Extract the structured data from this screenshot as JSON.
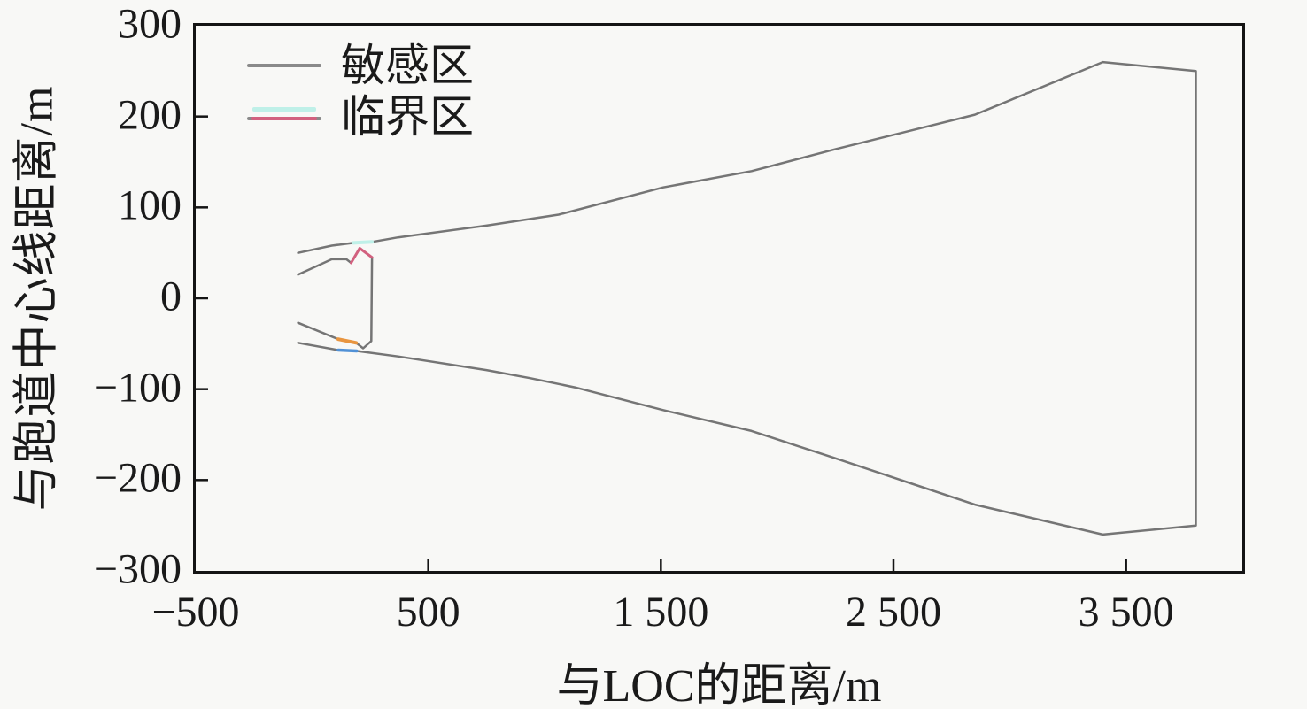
{
  "figure": {
    "background": "#f8f8f6",
    "axis_color": "#141414",
    "text_color": "#1a1a1a"
  },
  "chart_data": {
    "type": "line",
    "title": "",
    "xlabel": "与LOC的距离/m",
    "ylabel": "与跑道中心线距离/m",
    "xlim": [
      -500,
      4000
    ],
    "ylim": [
      -300,
      300
    ],
    "grid": false,
    "legend_position": "upper-left-inside",
    "x_ticks": {
      "values": [
        -500,
        500,
        1500,
        2500,
        3500
      ],
      "labels": [
        "−500",
        "500",
        "1 500",
        "2 500",
        "3 500"
      ]
    },
    "y_ticks": {
      "values": [
        300,
        200,
        100,
        0,
        -100,
        -200,
        -300
      ],
      "labels": [
        "300",
        "200",
        "100",
        "0",
        "−100",
        "−200",
        "−300"
      ]
    },
    "legend": [
      {
        "label": "敏感区",
        "colors": [
          "#8a8a8a"
        ]
      },
      {
        "label": "临界区",
        "colors": [
          "#bff0e8",
          "#d2617f",
          "#8a8a8a"
        ]
      }
    ],
    "series": [
      {
        "name": "sensitive-area-outline",
        "legend": "敏感区",
        "color": "#757575",
        "width": 2.5,
        "points": [
          [
            -60,
            50
          ],
          [
            85,
            58
          ],
          [
            178,
            61
          ],
          [
            258,
            62
          ],
          [
            370,
            67
          ],
          [
            750,
            80
          ],
          [
            1060,
            92
          ],
          [
            1510,
            122
          ],
          [
            1890,
            140
          ],
          [
            2250,
            164
          ],
          [
            2850,
            202
          ],
          [
            3400,
            260
          ],
          [
            3800,
            250
          ],
          [
            3800,
            -250
          ],
          [
            3400,
            -260
          ],
          [
            2850,
            -227
          ],
          [
            2250,
            -176
          ],
          [
            1890,
            -146
          ],
          [
            1510,
            -123
          ],
          [
            1130,
            -98
          ],
          [
            940,
            -88
          ],
          [
            750,
            -79
          ],
          [
            370,
            -64
          ],
          [
            192,
            -58
          ],
          [
            113,
            -57
          ],
          [
            -60,
            -49
          ]
        ]
      },
      {
        "name": "critical-area-upper-gray",
        "legend": "临界区",
        "color": "#757575",
        "width": 2.5,
        "points": [
          [
            -60,
            26
          ],
          [
            85,
            43
          ],
          [
            148,
            43
          ],
          [
            168,
            39
          ]
        ]
      },
      {
        "name": "critical-area-right-gray",
        "legend": "临界区",
        "color": "#757575",
        "width": 2.5,
        "points": [
          [
            258,
            45
          ],
          [
            255,
            -47
          ],
          [
            220,
            -55
          ],
          [
            190,
            -49
          ]
        ]
      },
      {
        "name": "critical-area-lower-gray",
        "legend": "临界区",
        "color": "#757575",
        "width": 2.5,
        "points": [
          [
            113,
            -45
          ],
          [
            -60,
            -27
          ]
        ]
      },
      {
        "name": "critical-area-top-overlap-cyan",
        "legend": "临界区",
        "color": "#bff0e8",
        "width": 4,
        "points": [
          [
            178,
            61
          ],
          [
            258,
            62
          ]
        ]
      },
      {
        "name": "critical-area-apex-pink",
        "legend": "临界区",
        "color": "#d2617f",
        "width": 3,
        "points": [
          [
            168,
            39
          ],
          [
            205,
            55
          ],
          [
            258,
            45
          ]
        ]
      },
      {
        "name": "critical-area-bottom-orange",
        "legend": "临界区",
        "color": "#e89540",
        "width": 4,
        "points": [
          [
            190,
            -49
          ],
          [
            113,
            -45
          ]
        ]
      },
      {
        "name": "critical-area-bottom-overlap-blue",
        "legend": "临界区",
        "color": "#5191d6",
        "width": 3.5,
        "points": [
          [
            113,
            -57
          ],
          [
            192,
            -58
          ]
        ]
      }
    ]
  }
}
